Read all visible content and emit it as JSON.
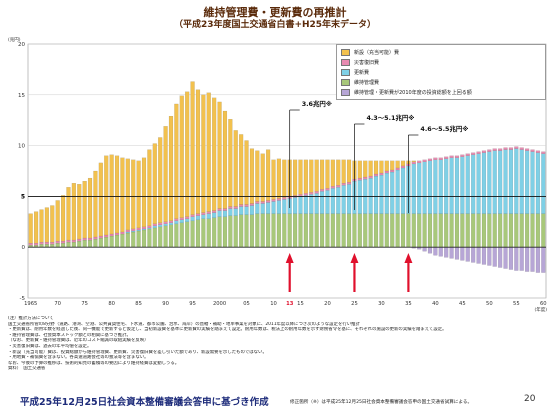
{
  "header": {
    "title": "維持管理費・更新費の再推計",
    "subtitle": "（平成23年度国土交通省白書+H25年末データ）"
  },
  "colors": {
    "new_construction": "#f2c14e",
    "disaster": "#e88ab0",
    "renewal": "#7fd0e6",
    "maintenance": "#a8c87a",
    "deficit": "#b7a6d6",
    "arrow": "#e0102c",
    "axis": "#444444"
  },
  "chart_data": {
    "type": "bar",
    "stacked": true,
    "ylabel": "(兆円)",
    "xlabel": "(年度)",
    "ylim": [
      -5,
      20
    ],
    "yticks": [
      -5,
      0,
      5,
      10,
      15,
      20
    ],
    "reference_line": 5,
    "x": [
      1965,
      1966,
      1967,
      1968,
      1969,
      1970,
      1971,
      1972,
      1973,
      1974,
      1975,
      1976,
      1977,
      1978,
      1979,
      1980,
      1981,
      1982,
      1983,
      1984,
      1985,
      1986,
      1987,
      1988,
      1989,
      1990,
      1991,
      1992,
      1993,
      1994,
      1995,
      1996,
      1997,
      1998,
      1999,
      2000,
      2001,
      2002,
      2003,
      2004,
      2005,
      2006,
      2007,
      2008,
      2009,
      2010,
      2011,
      2012,
      2013,
      2014,
      2015,
      2016,
      2017,
      2018,
      2019,
      2020,
      2021,
      2022,
      2023,
      2024,
      2025,
      2026,
      2027,
      2028,
      2029,
      2030,
      2031,
      2032,
      2033,
      2034,
      2035,
      2036,
      2037,
      2038,
      2039,
      2040,
      2041,
      2042,
      2043,
      2044,
      2045,
      2046,
      2047,
      2048,
      2049,
      2050,
      2051,
      2052,
      2053,
      2054,
      2055,
      2056,
      2057,
      2058,
      2059,
      2060
    ],
    "x_tick_labels": [
      "1965",
      "70",
      "75",
      "80",
      "85",
      "90",
      "95",
      "2000",
      "05",
      "10",
      "13",
      "15",
      "20",
      "25",
      "30",
      "35",
      "40",
      "45",
      "50",
      "55",
      "60"
    ],
    "highlight_tick": "13",
    "series": [
      {
        "name": "新設（充当可能）費",
        "key": "new_construction",
        "values": [
          2.9,
          3.1,
          3.2,
          3.4,
          3.6,
          4.0,
          4.5,
          5.2,
          5.6,
          5.4,
          5.6,
          5.9,
          6.5,
          7.2,
          7.8,
          7.8,
          7.6,
          7.3,
          7.0,
          6.8,
          6.6,
          6.8,
          7.5,
          7.9,
          8.4,
          9.4,
          10.3,
          11.3,
          12.0,
          12.3,
          13.1,
          12.2,
          11.6,
          11.7,
          11.1,
          10.5,
          9.6,
          8.6,
          7.5,
          6.9,
          6.3,
          5.4,
          5.0,
          4.7,
          5.0,
          3.9,
          3.9,
          3.7,
          3.6,
          3.5,
          3.4,
          3.3,
          3.2,
          3.1,
          2.9,
          2.8,
          2.6,
          2.5,
          2.3,
          2.2,
          1.8,
          1.7,
          1.6,
          1.5,
          1.3,
          1.2,
          1.0,
          0.9,
          0.7,
          0.5,
          0.3,
          0.1,
          0.0,
          0.0,
          0.0,
          0.0,
          0.0,
          0.0,
          0.0,
          0.0,
          0.0,
          0.0,
          0.0,
          0.0,
          0.0,
          0.0,
          0.0,
          0.0,
          0.0,
          0.0,
          0.0,
          0.0,
          0.0,
          0.0,
          0.0,
          0.0
        ]
      },
      {
        "name": "災害復旧費",
        "key": "disaster",
        "values": [
          0.2,
          0.2,
          0.2,
          0.2,
          0.2,
          0.2,
          0.2,
          0.2,
          0.2,
          0.2,
          0.2,
          0.2,
          0.2,
          0.2,
          0.2,
          0.2,
          0.2,
          0.2,
          0.2,
          0.2,
          0.2,
          0.2,
          0.2,
          0.2,
          0.2,
          0.2,
          0.2,
          0.2,
          0.2,
          0.2,
          0.2,
          0.2,
          0.2,
          0.2,
          0.2,
          0.2,
          0.2,
          0.2,
          0.2,
          0.2,
          0.2,
          0.2,
          0.2,
          0.2,
          0.2,
          0.2,
          0.2,
          0.2,
          0.2,
          0.2,
          0.2,
          0.2,
          0.2,
          0.2,
          0.2,
          0.2,
          0.2,
          0.2,
          0.2,
          0.2,
          0.2,
          0.2,
          0.2,
          0.2,
          0.2,
          0.2,
          0.2,
          0.2,
          0.2,
          0.2,
          0.2,
          0.2,
          0.2,
          0.2,
          0.2,
          0.2,
          0.2,
          0.2,
          0.2,
          0.2,
          0.2,
          0.2,
          0.2,
          0.2,
          0.2,
          0.2,
          0.2,
          0.2,
          0.2,
          0.2,
          0.2,
          0.2,
          0.2,
          0.2,
          0.2,
          0.2
        ]
      },
      {
        "name": "更新費",
        "key": "renewal",
        "values": [
          0.0,
          0.0,
          0.0,
          0.0,
          0.0,
          0.0,
          0.0,
          0.0,
          0.0,
          0.0,
          0.0,
          0.0,
          0.0,
          0.0,
          0.0,
          0.0,
          0.0,
          0.0,
          0.1,
          0.1,
          0.1,
          0.1,
          0.1,
          0.2,
          0.2,
          0.2,
          0.2,
          0.3,
          0.3,
          0.3,
          0.4,
          0.4,
          0.4,
          0.5,
          0.5,
          0.6,
          0.6,
          0.7,
          0.7,
          0.8,
          0.8,
          0.9,
          1.0,
          1.0,
          1.1,
          1.2,
          1.3,
          1.4,
          1.5,
          1.6,
          1.7,
          1.8,
          1.9,
          2.0,
          2.2,
          2.3,
          2.5,
          2.6,
          2.8,
          2.9,
          3.2,
          3.3,
          3.4,
          3.5,
          3.7,
          3.8,
          4.0,
          4.1,
          4.3,
          4.5,
          4.7,
          4.9,
          5.0,
          5.1,
          5.2,
          5.3,
          5.3,
          5.4,
          5.5,
          5.5,
          5.6,
          5.7,
          5.8,
          5.9,
          6.0,
          6.1,
          6.2,
          6.2,
          6.3,
          6.3,
          6.4,
          6.3,
          6.2,
          6.1,
          6.0,
          5.9
        ]
      },
      {
        "name": "維持管理費",
        "key": "maintenance",
        "values": [
          0.2,
          0.2,
          0.3,
          0.3,
          0.3,
          0.4,
          0.4,
          0.5,
          0.5,
          0.6,
          0.7,
          0.7,
          0.8,
          0.9,
          1.0,
          1.1,
          1.2,
          1.3,
          1.4,
          1.5,
          1.6,
          1.7,
          1.8,
          1.9,
          2.0,
          2.1,
          2.2,
          2.3,
          2.4,
          2.5,
          2.6,
          2.7,
          2.8,
          2.8,
          2.9,
          3.0,
          3.0,
          3.1,
          3.1,
          3.2,
          3.2,
          3.2,
          3.3,
          3.3,
          3.3,
          3.3,
          3.3,
          3.3,
          3.3,
          3.3,
          3.3,
          3.3,
          3.3,
          3.3,
          3.3,
          3.3,
          3.3,
          3.3,
          3.3,
          3.3,
          3.3,
          3.3,
          3.3,
          3.3,
          3.3,
          3.3,
          3.3,
          3.3,
          3.3,
          3.3,
          3.3,
          3.3,
          3.3,
          3.3,
          3.3,
          3.3,
          3.3,
          3.3,
          3.3,
          3.3,
          3.3,
          3.3,
          3.3,
          3.3,
          3.3,
          3.3,
          3.3,
          3.3,
          3.3,
          3.3,
          3.3,
          3.3,
          3.3,
          3.3,
          3.3,
          3.3
        ]
      },
      {
        "name": "維持管理・更新費が2010年度の投資総額を上回る額",
        "key": "deficit",
        "values": [
          0.0,
          0.0,
          0.0,
          0.0,
          0.0,
          0.0,
          0.0,
          0.0,
          0.0,
          0.0,
          0.0,
          0.0,
          0.0,
          0.0,
          0.0,
          0.0,
          0.0,
          0.0,
          0.0,
          0.0,
          0.0,
          0.0,
          0.0,
          0.0,
          0.0,
          0.0,
          0.0,
          0.0,
          0.0,
          0.0,
          0.0,
          0.0,
          0.0,
          0.0,
          0.0,
          0.0,
          0.0,
          0.0,
          0.0,
          0.0,
          0.0,
          0.0,
          0.0,
          0.0,
          0.0,
          0.0,
          0.0,
          0.0,
          0.0,
          0.0,
          0.0,
          0.0,
          0.0,
          0.0,
          0.0,
          0.0,
          0.0,
          0.0,
          0.0,
          0.0,
          0.0,
          0.0,
          0.0,
          0.0,
          0.0,
          0.0,
          0.0,
          0.0,
          0.0,
          0.0,
          0.0,
          -0.1,
          -0.2,
          -0.4,
          -0.6,
          -0.8,
          -0.9,
          -1.0,
          -1.1,
          -1.2,
          -1.3,
          -1.4,
          -1.5,
          -1.6,
          -1.7,
          -1.8,
          -1.9,
          -2.0,
          -2.1,
          -2.2,
          -2.3,
          -2.3,
          -2.4,
          -2.4,
          -2.5,
          -2.5
        ]
      }
    ],
    "annotations": [
      {
        "text": "3.6兆円※",
        "year": 2013
      },
      {
        "text": "4.3～5.1兆円※",
        "year": 2025
      },
      {
        "text": "4.6～5.5兆円※",
        "year": 2035
      }
    ],
    "arrow_years": [
      2013,
      2025,
      2035
    ]
  },
  "notes": [
    "(注）推計方法について",
    "国土交通省所管の8分野（道路、港湾、空港、公共賃貸住宅、下水道、都市公園、治水、海岸）の直轄・補助・地単事業を対象に、2011年度以降につき次のような設定を行い推計",
    "・更新費は、耐用年数を経過した後、同一機能で更新すると仮定し、当初新設費を基準に更新費の実績を踏まえて設定。耐用年数は、税法上の耐用年数を示す財務省令を基に、それぞれの施設の更新の実績を踏まえて設定。",
    "・維持管理費は、社会資本ストック額との相関に基づき推計。",
    "（なお、更新費・維持管理費は、近年のコスト縮減の取組実績を反映）",
    "・災害復旧費は、過去の年平均値を設定。",
    "・新設（充当可能）費は、投資総額から維持管理費、更新費、災害復旧費を差し引いた額であり、新設需要を示したものではない。",
    "・用地費・補償費を含まない。各高速道路会社等の独法等を含まない。",
    "なお、今後の予算の推移は、技術的知見の蓄積等の要因により維持経費は変動しうる。",
    "資料）　国土交通省"
  ],
  "footer": {
    "main": "平成25年12月25日社会資本整備審議会答申に基づき作成",
    "note": "修正箇所（※）は平成25年12月25日社会資本整備審議会答申の国土交通省試算による。",
    "page": "20"
  }
}
